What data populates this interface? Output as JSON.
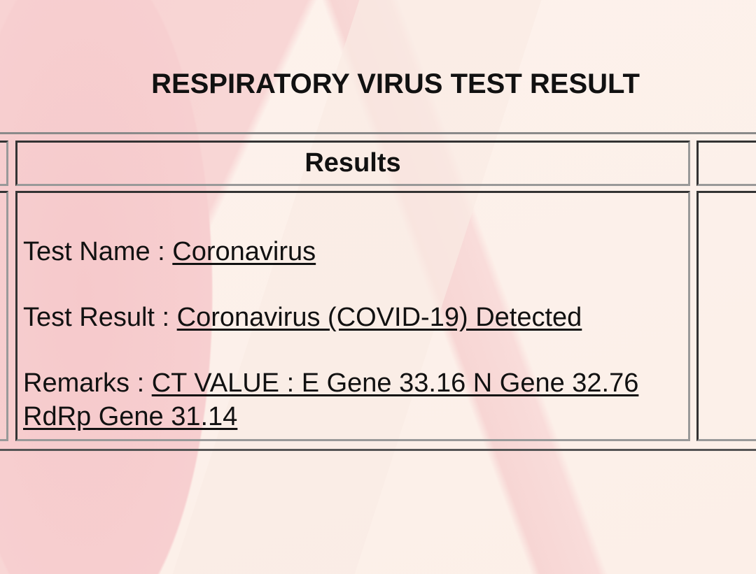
{
  "title": "RESPIRATORY VIRUS TEST RESULT",
  "table": {
    "header": "Results",
    "rows": [
      {
        "label": "Test Name : ",
        "value": "Coronavirus"
      },
      {
        "label": "Test Result : ",
        "value": "Coronavirus (COVID-19) Detected"
      },
      {
        "label": "Remarks : ",
        "value": "CT VALUE : E Gene 33.16 N Gene 32.76 RdRp Gene 31.14"
      }
    ]
  }
}
